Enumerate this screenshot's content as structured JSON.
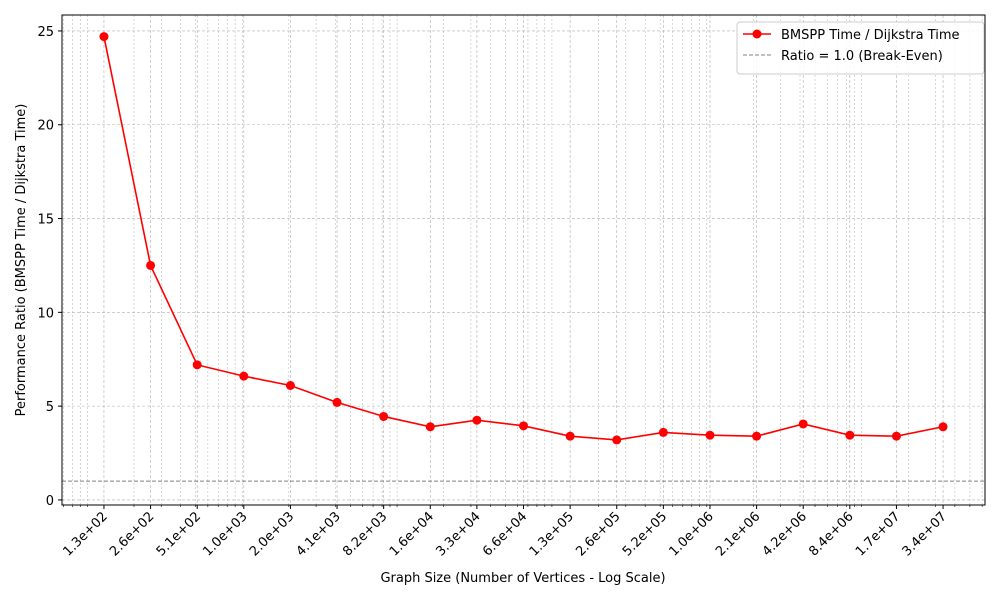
{
  "chart_data": {
    "type": "line",
    "x_label": "Graph Size (Number of Vertices - Log Scale)",
    "y_label": "Performance Ratio (BMSPP Time / Dijkstra Time)",
    "x": [
      128,
      256,
      512,
      1024,
      2048,
      4096,
      8192,
      16384,
      32768,
      65536,
      131072,
      262144,
      524288,
      1048576,
      2097152,
      4194304,
      8388608,
      16777216,
      33554432
    ],
    "series": [
      {
        "name": "BMSPP Time / Dijkstra Time",
        "color": "#ff0000",
        "values": [
          24.7,
          12.5,
          7.2,
          6.6,
          6.1,
          5.2,
          4.45,
          3.9,
          4.25,
          3.95,
          3.4,
          3.2,
          3.6,
          3.45,
          3.4,
          4.05,
          3.45,
          3.4,
          3.9
        ]
      }
    ],
    "hlines": [
      {
        "y": 1,
        "label": "Ratio = 1.0 (Break-Even)",
        "color": "#808080"
      }
    ],
    "xlog": true,
    "xlim": [
      68.6,
      62600000
    ],
    "ylim": [
      -0.27,
      25.85
    ],
    "xticks": [
      {
        "value": 128,
        "label": "1.3e+02"
      },
      {
        "value": 256,
        "label": "2.6e+02"
      },
      {
        "value": 512,
        "label": "5.1e+02"
      },
      {
        "value": 1024,
        "label": "1.0e+03"
      },
      {
        "value": 2048,
        "label": "2.0e+03"
      },
      {
        "value": 4096,
        "label": "4.1e+03"
      },
      {
        "value": 8192,
        "label": "8.2e+03"
      },
      {
        "value": 16384,
        "label": "1.6e+04"
      },
      {
        "value": 32768,
        "label": "3.3e+04"
      },
      {
        "value": 65536,
        "label": "6.6e+04"
      },
      {
        "value": 131072,
        "label": "1.3e+05"
      },
      {
        "value": 262144,
        "label": "2.6e+05"
      },
      {
        "value": 524288,
        "label": "5.2e+05"
      },
      {
        "value": 1048576,
        "label": "1.0e+06"
      },
      {
        "value": 2097152,
        "label": "2.1e+06"
      },
      {
        "value": 4194304,
        "label": "4.2e+06"
      },
      {
        "value": 8388608,
        "label": "8.4e+06"
      },
      {
        "value": 16777216,
        "label": "1.7e+07"
      },
      {
        "value": 33554432,
        "label": "3.4e+07"
      }
    ],
    "yticks": [
      0,
      5,
      10,
      15,
      20,
      25
    ],
    "grid": true,
    "minor_grid": true,
    "legend": "upper right"
  }
}
